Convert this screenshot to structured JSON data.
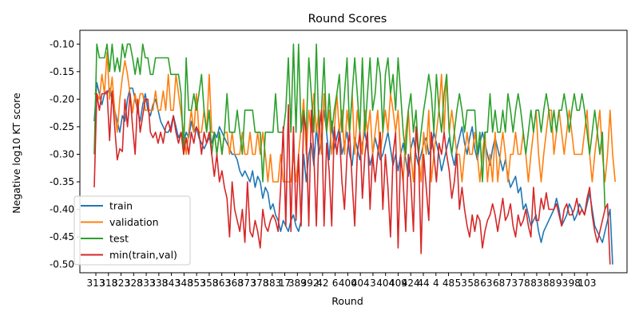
{
  "chart_data": {
    "type": "line",
    "title": "Round Scores",
    "xlabel": "Round",
    "ylabel": "Negative log10 KT score",
    "ylim": [
      -0.515,
      -0.075
    ],
    "y_ticks": [
      "-0.10",
      "-0.15",
      "-0.20",
      "-0.25",
      "-0.30",
      "-0.35",
      "-0.40",
      "-0.45",
      "-0.50"
    ],
    "y_tick_values": [
      -0.1,
      -0.15,
      -0.2,
      -0.25,
      -0.3,
      -0.35,
      -0.4,
      -0.45,
      -0.5
    ],
    "x_tick_labels": [
      "313",
      "318",
      "323",
      "328",
      "333",
      "338",
      "343",
      "348",
      "353",
      "358",
      "363",
      "368",
      "373",
      "378",
      "383",
      "17",
      "389",
      "392",
      "42",
      "6",
      "400",
      "404",
      "3",
      "404",
      "409",
      "424",
      "44",
      "4",
      "48",
      "53",
      "58",
      "63",
      "68",
      "73",
      "78",
      "83",
      "88",
      "93",
      "98",
      "103"
    ],
    "legend": {
      "location": "lower-left",
      "entries": [
        "train",
        "validation",
        "test",
        "min(train,val)"
      ]
    },
    "colors": {
      "train": "#1f77b4",
      "validation": "#ff7f0e",
      "test": "#2ca02c",
      "min": "#d62728"
    },
    "series": [
      {
        "name": "train",
        "values": [
          -0.24,
          -0.17,
          -0.19,
          -0.21,
          -0.19,
          -0.19,
          -0.18,
          -0.2,
          -0.22,
          -0.24,
          -0.26,
          -0.23,
          -0.24,
          -0.2,
          -0.18,
          -0.18,
          -0.2,
          -0.22,
          -0.24,
          -0.21,
          -0.19,
          -0.22,
          -0.23,
          -0.21,
          -0.2,
          -0.22,
          -0.24,
          -0.25,
          -0.26,
          -0.26,
          -0.25,
          -0.23,
          -0.25,
          -0.27,
          -0.26,
          -0.28,
          -0.26,
          -0.27,
          -0.24,
          -0.26,
          -0.25,
          -0.27,
          -0.28,
          -0.29,
          -0.28,
          -0.27,
          -0.28,
          -0.26,
          -0.27,
          -0.25,
          -0.26,
          -0.27,
          -0.28,
          -0.29,
          -0.3,
          -0.3,
          -0.31,
          -0.33,
          -0.34,
          -0.33,
          -0.34,
          -0.35,
          -0.33,
          -0.36,
          -0.34,
          -0.35,
          -0.38,
          -0.36,
          -0.37,
          -0.4,
          -0.39,
          -0.41,
          -0.42,
          -0.44,
          -0.42,
          -0.43,
          -0.44,
          -0.42,
          -0.41,
          -0.43,
          -0.44,
          -0.42,
          -0.3,
          -0.35,
          -0.3,
          -0.28,
          -0.32,
          -0.25,
          -0.3,
          -0.27,
          -0.22,
          -0.26,
          -0.31,
          -0.24,
          -0.29,
          -0.27,
          -0.25,
          -0.3,
          -0.28,
          -0.26,
          -0.3,
          -0.32,
          -0.27,
          -0.29,
          -0.31,
          -0.28,
          -0.26,
          -0.29,
          -0.32,
          -0.3,
          -0.27,
          -0.29,
          -0.31,
          -0.3,
          -0.28,
          -0.26,
          -0.29,
          -0.32,
          -0.3,
          -0.33,
          -0.3,
          -0.28,
          -0.31,
          -0.34,
          -0.29,
          -0.27,
          -0.3,
          -0.32,
          -0.3,
          -0.28,
          -0.27,
          -0.3,
          -0.29,
          -0.26,
          -0.28,
          -0.3,
          -0.33,
          -0.31,
          -0.29,
          -0.27,
          -0.3,
          -0.32,
          -0.29,
          -0.27,
          -0.25,
          -0.28,
          -0.3,
          -0.27,
          -0.25,
          -0.29,
          -0.31,
          -0.28,
          -0.26,
          -0.28,
          -0.3,
          -0.32,
          -0.29,
          -0.27,
          -0.29,
          -0.31,
          -0.33,
          -0.31,
          -0.34,
          -0.36,
          -0.35,
          -0.34,
          -0.37,
          -0.36,
          -0.4,
          -0.39,
          -0.41,
          -0.43,
          -0.42,
          -0.41,
          -0.44,
          -0.46,
          -0.44,
          -0.43,
          -0.42,
          -0.41,
          -0.4,
          -0.38,
          -0.4,
          -0.43,
          -0.42,
          -0.41,
          -0.39,
          -0.4,
          -0.42,
          -0.41,
          -0.39,
          -0.4,
          -0.41,
          -0.39,
          -0.37,
          -0.4,
          -0.43,
          -0.44,
          -0.45,
          -0.46,
          -0.44,
          -0.42,
          -0.4,
          -0.5
        ],
        "note_auto": false
      },
      {
        "name": "validation",
        "values": [
          -0.19,
          -0.19,
          -0.2,
          -0.155,
          -0.19,
          -0.115,
          -0.2,
          -0.16,
          -0.22,
          -0.26,
          -0.2,
          -0.16,
          -0.13,
          -0.155,
          -0.19,
          -0.225,
          -0.19,
          -0.22,
          -0.19,
          -0.19,
          -0.22,
          -0.22,
          -0.22,
          -0.22,
          -0.185,
          -0.22,
          -0.22,
          -0.185,
          -0.22,
          -0.155,
          -0.22,
          -0.22,
          -0.155,
          -0.19,
          -0.225,
          -0.26,
          -0.3,
          -0.26,
          -0.22,
          -0.26,
          -0.19,
          -0.26,
          -0.26,
          -0.22,
          -0.26,
          -0.155,
          -0.26,
          -0.26,
          -0.3,
          -0.26,
          -0.3,
          -0.26,
          -0.26,
          -0.3,
          -0.26,
          -0.3,
          -0.3,
          -0.3,
          -0.26,
          -0.3,
          -0.3,
          -0.26,
          -0.3,
          -0.3,
          -0.26,
          -0.3,
          -0.26,
          -0.3,
          -0.35,
          -0.3,
          -0.35,
          -0.35,
          -0.35,
          -0.3,
          -0.35,
          -0.35,
          -0.35,
          -0.35,
          -0.3,
          -0.35,
          -0.3,
          -0.25,
          -0.2,
          -0.3,
          -0.22,
          -0.26,
          -0.19,
          -0.26,
          -0.22,
          -0.3,
          -0.19,
          -0.26,
          -0.22,
          -0.3,
          -0.26,
          -0.19,
          -0.26,
          -0.22,
          -0.3,
          -0.22,
          -0.26,
          -0.19,
          -0.3,
          -0.22,
          -0.26,
          -0.3,
          -0.22,
          -0.26,
          -0.22,
          -0.3,
          -0.26,
          -0.22,
          -0.3,
          -0.26,
          -0.22,
          -0.26,
          -0.19,
          -0.22,
          -0.26,
          -0.22,
          -0.3,
          -0.35,
          -0.26,
          -0.22,
          -0.3,
          -0.35,
          -0.26,
          -0.3,
          -0.35,
          -0.26,
          -0.3,
          -0.22,
          -0.35,
          -0.3,
          -0.26,
          -0.22,
          -0.155,
          -0.26,
          -0.155,
          -0.26,
          -0.22,
          -0.26,
          -0.3,
          -0.3,
          -0.35,
          -0.3,
          -0.26,
          -0.3,
          -0.3,
          -0.26,
          -0.3,
          -0.35,
          -0.3,
          -0.26,
          -0.35,
          -0.3,
          -0.35,
          -0.26,
          -0.35,
          -0.3,
          -0.26,
          -0.3,
          -0.35,
          -0.3,
          -0.3,
          -0.26,
          -0.3,
          -0.3,
          -0.26,
          -0.3,
          -0.35,
          -0.3,
          -0.26,
          -0.22,
          -0.3,
          -0.35,
          -0.3,
          -0.26,
          -0.22,
          -0.22,
          -0.3,
          -0.26,
          -0.22,
          -0.26,
          -0.3,
          -0.26,
          -0.22,
          -0.26,
          -0.3,
          -0.3,
          -0.3,
          -0.3,
          -0.26,
          -0.22,
          -0.3,
          -0.35,
          -0.3,
          -0.26,
          -0.22,
          -0.3,
          -0.35,
          -0.3,
          -0.22,
          -0.3,
          -0.35
        ]
      },
      {
        "name": "test",
        "values": [
          -0.3,
          -0.1,
          -0.125,
          -0.125,
          -0.125,
          -0.1,
          -0.15,
          -0.1,
          -0.15,
          -0.125,
          -0.15,
          -0.1,
          -0.125,
          -0.1,
          -0.1,
          -0.125,
          -0.155,
          -0.125,
          -0.155,
          -0.1,
          -0.125,
          -0.125,
          -0.155,
          -0.155,
          -0.125,
          -0.125,
          -0.125,
          -0.125,
          -0.125,
          -0.125,
          -0.155,
          -0.155,
          -0.155,
          -0.155,
          -0.19,
          -0.3,
          -0.125,
          -0.22,
          -0.22,
          -0.19,
          -0.22,
          -0.19,
          -0.155,
          -0.22,
          -0.26,
          -0.22,
          -0.3,
          -0.26,
          -0.3,
          -0.26,
          -0.3,
          -0.26,
          -0.19,
          -0.26,
          -0.26,
          -0.26,
          -0.22,
          -0.26,
          -0.3,
          -0.22,
          -0.22,
          -0.22,
          -0.22,
          -0.26,
          -0.26,
          -0.26,
          -0.35,
          -0.26,
          -0.26,
          -0.26,
          -0.26,
          -0.19,
          -0.26,
          -0.26,
          -0.26,
          -0.22,
          -0.125,
          -0.26,
          -0.1,
          -0.26,
          -0.1,
          -0.26,
          -0.22,
          -0.26,
          -0.125,
          -0.19,
          -0.26,
          -0.1,
          -0.26,
          -0.22,
          -0.125,
          -0.26,
          -0.19,
          -0.26,
          -0.22,
          -0.19,
          -0.155,
          -0.26,
          -0.19,
          -0.125,
          -0.26,
          -0.19,
          -0.125,
          -0.19,
          -0.26,
          -0.125,
          -0.26,
          -0.19,
          -0.125,
          -0.22,
          -0.19,
          -0.125,
          -0.155,
          -0.26,
          -0.155,
          -0.125,
          -0.19,
          -0.155,
          -0.22,
          -0.125,
          -0.19,
          -0.26,
          -0.3,
          -0.22,
          -0.19,
          -0.26,
          -0.22,
          -0.3,
          -0.26,
          -0.22,
          -0.19,
          -0.155,
          -0.19,
          -0.26,
          -0.155,
          -0.22,
          -0.26,
          -0.19,
          -0.155,
          -0.26,
          -0.3,
          -0.26,
          -0.22,
          -0.19,
          -0.22,
          -0.26,
          -0.22,
          -0.22,
          -0.22,
          -0.22,
          -0.3,
          -0.26,
          -0.35,
          -0.26,
          -0.26,
          -0.19,
          -0.26,
          -0.22,
          -0.26,
          -0.26,
          -0.22,
          -0.26,
          -0.19,
          -0.22,
          -0.26,
          -0.22,
          -0.19,
          -0.22,
          -0.26,
          -0.3,
          -0.26,
          -0.22,
          -0.26,
          -0.22,
          -0.22,
          -0.26,
          -0.22,
          -0.19,
          -0.22,
          -0.26,
          -0.22,
          -0.26,
          -0.22,
          -0.22,
          -0.19,
          -0.22,
          -0.26,
          -0.22,
          -0.19,
          -0.22,
          -0.22,
          -0.19,
          -0.22,
          -0.26,
          -0.3,
          -0.26,
          -0.22,
          -0.26,
          -0.3,
          -0.26,
          -0.4
        ]
      },
      {
        "name": "min(train,val)",
        "values": [
          -0.36,
          -0.19,
          -0.22,
          -0.19,
          -0.19,
          -0.185,
          -0.275,
          -0.185,
          -0.25,
          -0.31,
          -0.29,
          -0.295,
          -0.2,
          -0.25,
          -0.19,
          -0.25,
          -0.3,
          -0.2,
          -0.26,
          -0.23,
          -0.2,
          -0.2,
          -0.26,
          -0.27,
          -0.26,
          -0.28,
          -0.26,
          -0.28,
          -0.25,
          -0.24,
          -0.26,
          -0.23,
          -0.26,
          -0.28,
          -0.26,
          -0.3,
          -0.27,
          -0.3,
          -0.26,
          -0.28,
          -0.25,
          -0.26,
          -0.3,
          -0.26,
          -0.28,
          -0.26,
          -0.3,
          -0.34,
          -0.3,
          -0.35,
          -0.33,
          -0.36,
          -0.38,
          -0.45,
          -0.35,
          -0.4,
          -0.42,
          -0.44,
          -0.4,
          -0.46,
          -0.35,
          -0.44,
          -0.45,
          -0.42,
          -0.44,
          -0.47,
          -0.4,
          -0.43,
          -0.44,
          -0.42,
          -0.41,
          -0.42,
          -0.44,
          -0.36,
          -0.25,
          -0.43,
          -0.21,
          -0.44,
          -0.25,
          -0.42,
          -0.3,
          -0.43,
          -0.23,
          -0.26,
          -0.43,
          -0.22,
          -0.3,
          -0.43,
          -0.26,
          -0.22,
          -0.43,
          -0.28,
          -0.33,
          -0.43,
          -0.25,
          -0.3,
          -0.26,
          -0.35,
          -0.4,
          -0.3,
          -0.26,
          -0.35,
          -0.43,
          -0.3,
          -0.26,
          -0.38,
          -0.3,
          -0.26,
          -0.4,
          -0.3,
          -0.35,
          -0.3,
          -0.26,
          -0.4,
          -0.3,
          -0.36,
          -0.45,
          -0.3,
          -0.26,
          -0.47,
          -0.3,
          -0.35,
          -0.44,
          -0.3,
          -0.35,
          -0.44,
          -0.25,
          -0.3,
          -0.48,
          -0.3,
          -0.36,
          -0.42,
          -0.26,
          -0.3,
          -0.35,
          -0.28,
          -0.3,
          -0.26,
          -0.3,
          -0.33,
          -0.38,
          -0.35,
          -0.3,
          -0.4,
          -0.36,
          -0.4,
          -0.43,
          -0.45,
          -0.41,
          -0.44,
          -0.41,
          -0.42,
          -0.47,
          -0.44,
          -0.42,
          -0.41,
          -0.39,
          -0.41,
          -0.44,
          -0.41,
          -0.38,
          -0.42,
          -0.41,
          -0.39,
          -0.43,
          -0.45,
          -0.41,
          -0.43,
          -0.42,
          -0.4,
          -0.43,
          -0.45,
          -0.36,
          -0.42,
          -0.42,
          -0.38,
          -0.4,
          -0.37,
          -0.4,
          -0.4,
          -0.4,
          -0.39,
          -0.41,
          -0.43,
          -0.4,
          -0.39,
          -0.41,
          -0.41,
          -0.4,
          -0.38,
          -0.41,
          -0.4,
          -0.41,
          -0.38,
          -0.36,
          -0.41,
          -0.44,
          -0.46,
          -0.44,
          -0.42,
          -0.4,
          -0.39,
          -0.5
        ]
      }
    ]
  }
}
